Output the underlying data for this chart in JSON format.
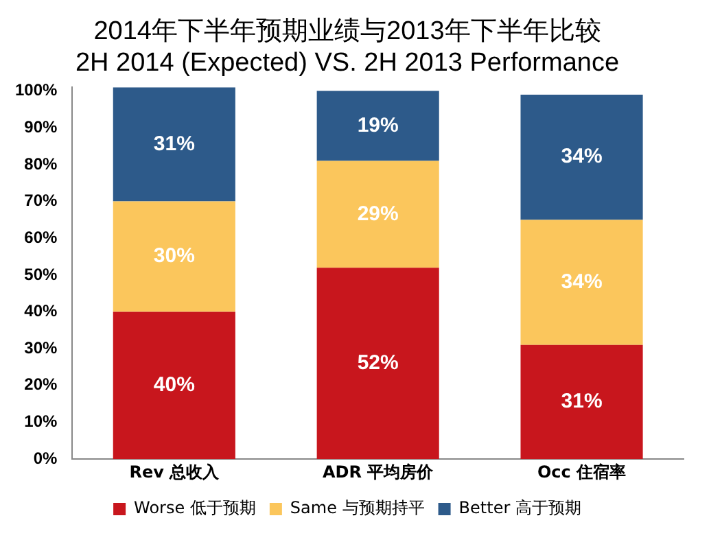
{
  "chart_data": {
    "type": "bar",
    "title": [
      "2014年下半年预期业绩与2013年下半年比较",
      "2H 2014 (Expected) VS. 2H 2013 Performance"
    ],
    "categories": [
      "Rev 总收入",
      "ADR 平均房价",
      "Occ 住宿率"
    ],
    "stacked": true,
    "series": [
      {
        "name": "Worse 低于预期",
        "color": "#c8161d",
        "values": [
          40,
          52,
          31
        ],
        "value_labels": [
          "40%",
          "52%",
          "31%"
        ]
      },
      {
        "name": "Same 与预期持平",
        "color": "#fbc65c",
        "values": [
          30,
          29,
          34
        ],
        "value_labels": [
          "30%",
          "29%",
          "34%"
        ]
      },
      {
        "name": "Better 高于预期",
        "color": "#2d5a8a",
        "values": [
          31,
          19,
          34
        ],
        "value_labels": [
          "31%",
          "19%",
          "34%"
        ]
      }
    ],
    "ylim": [
      0,
      101
    ],
    "yticks": [
      {
        "value": 0,
        "label": "0%"
      },
      {
        "value": 10,
        "label": "10%"
      },
      {
        "value": 20,
        "label": "20%"
      },
      {
        "value": 30,
        "label": "30%"
      },
      {
        "value": 40,
        "label": "40%"
      },
      {
        "value": 50,
        "label": "50%"
      },
      {
        "value": 60,
        "label": "60%"
      },
      {
        "value": 70,
        "label": "70%"
      },
      {
        "value": 80,
        "label": "80%"
      },
      {
        "value": 90,
        "label": "90%"
      },
      {
        "value": 100,
        "label": "100%"
      }
    ],
    "grid": false,
    "legend": "bottom"
  }
}
